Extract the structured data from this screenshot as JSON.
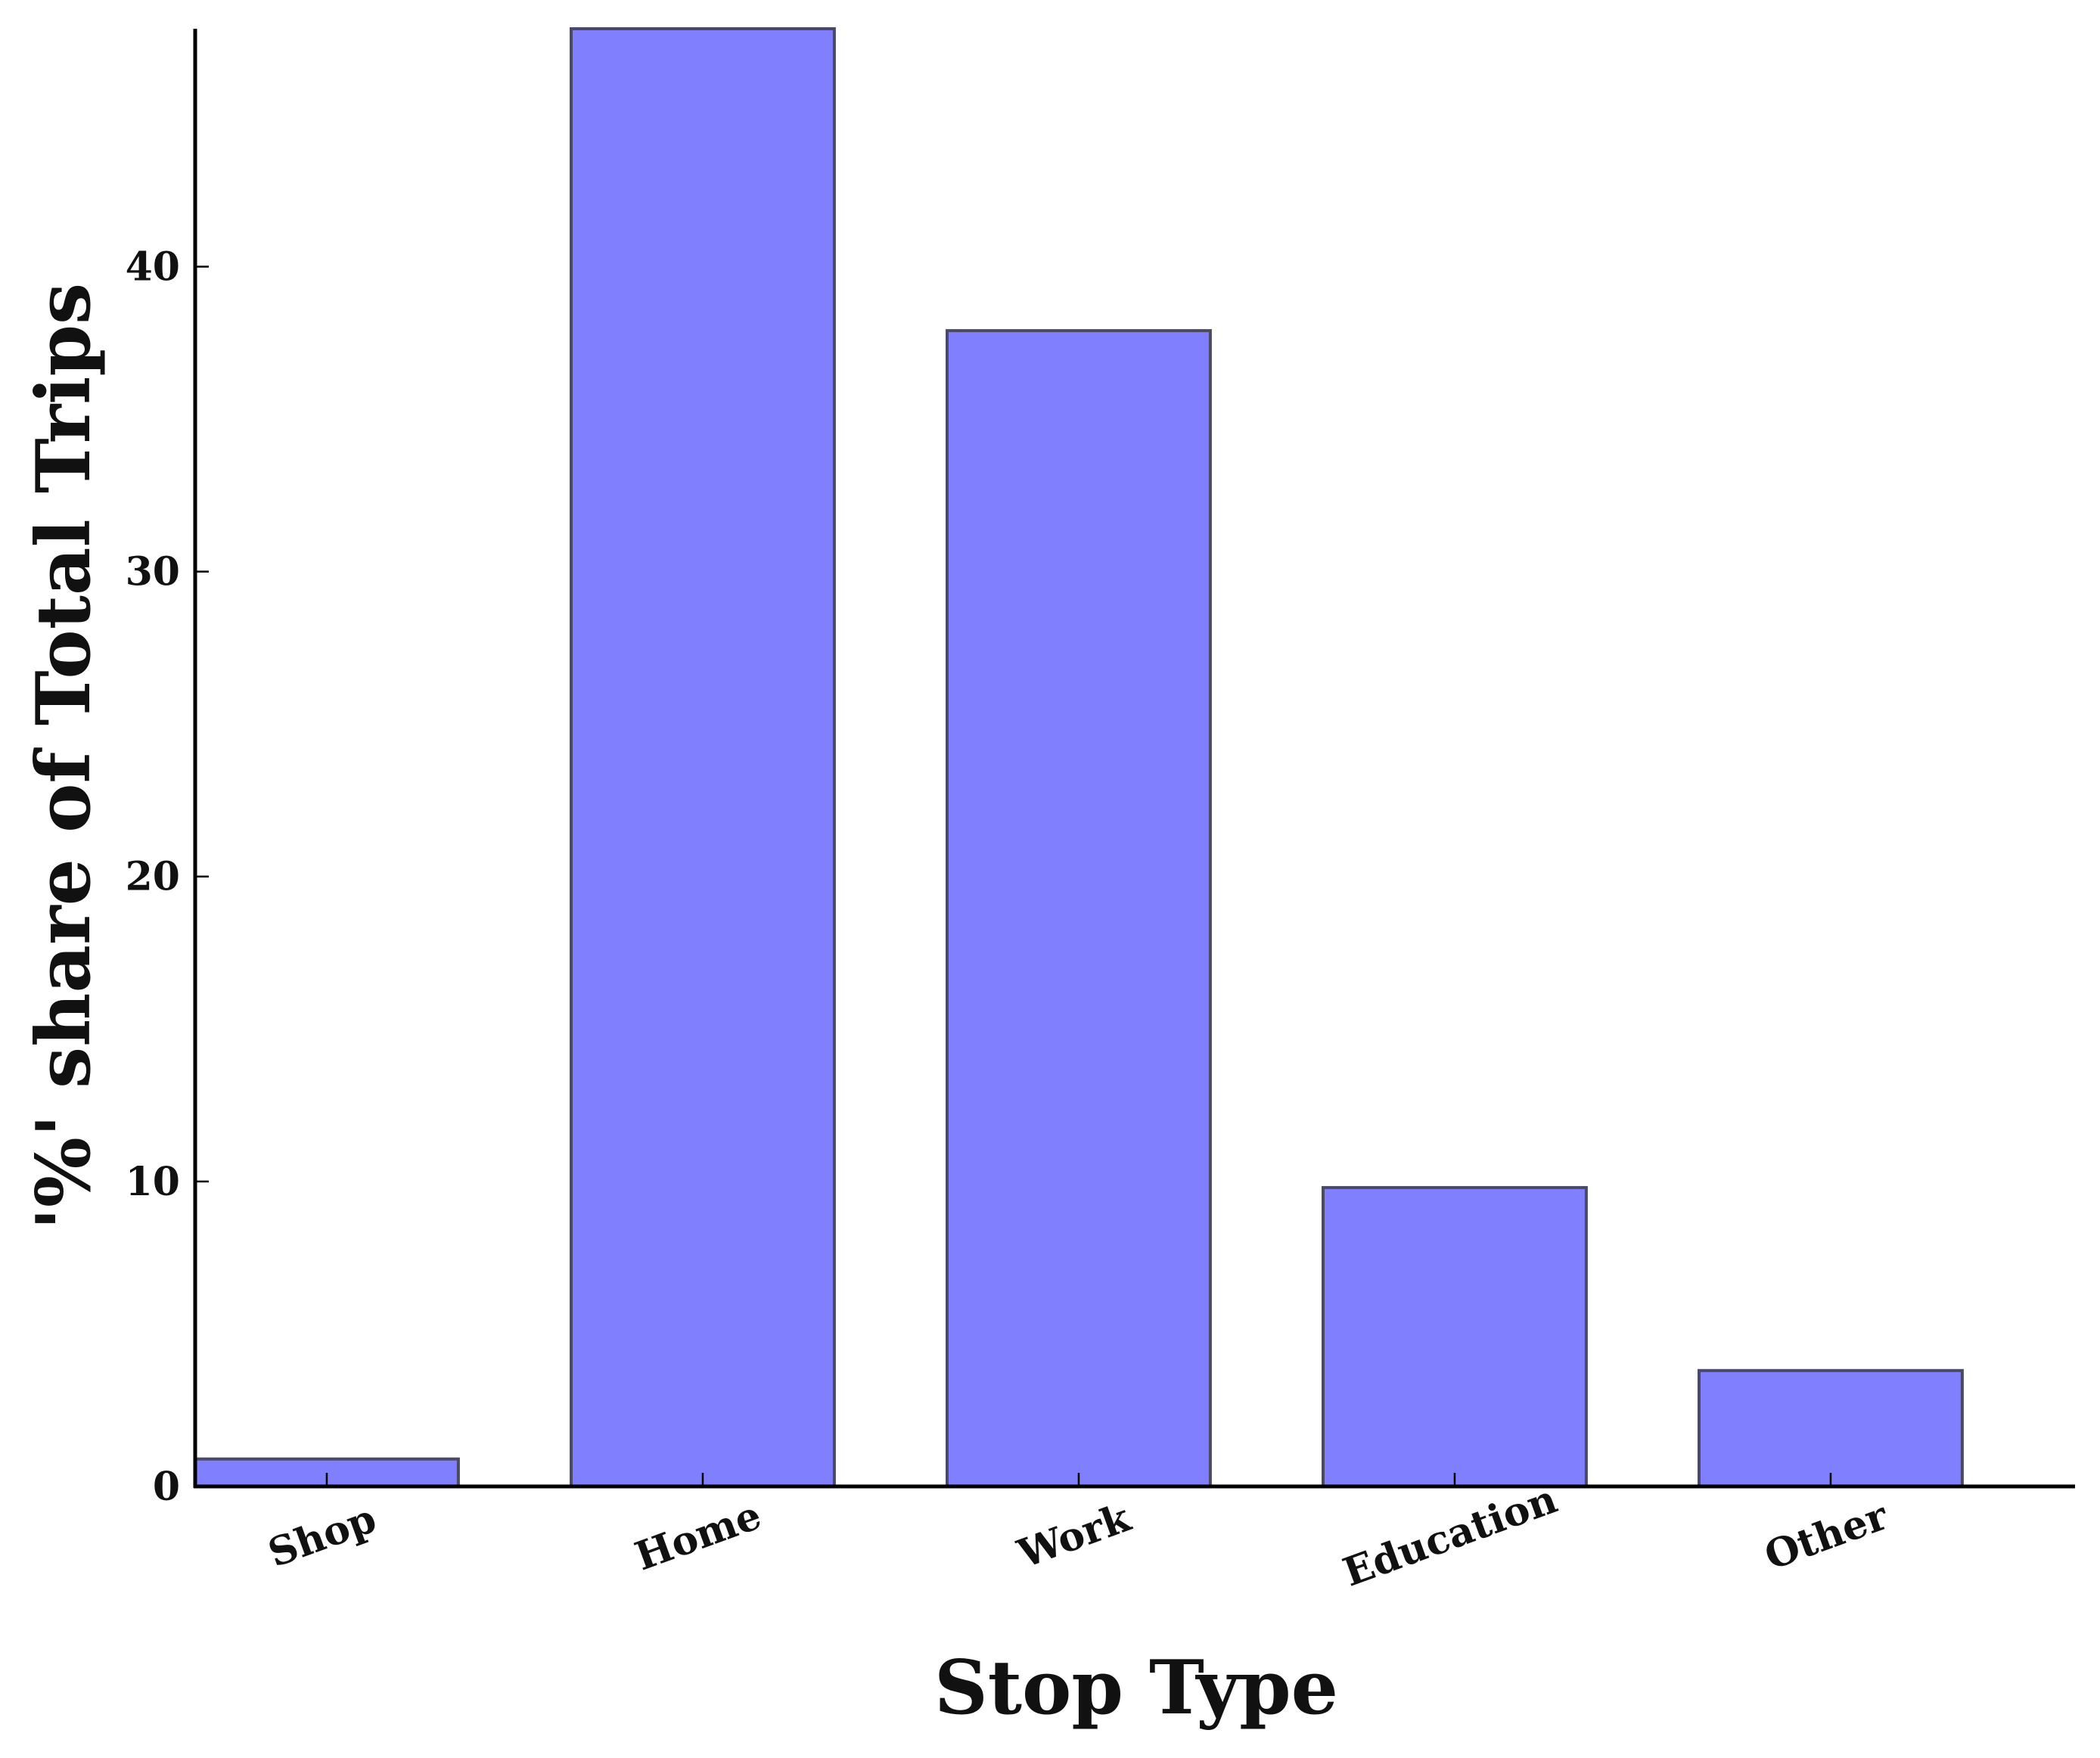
{
  "chart_data": {
    "type": "bar",
    "title": "",
    "xlabel": "Stop Type",
    "ylabel": "'%' share of Total Trips",
    "categories": [
      "Shop",
      "Home",
      "Work",
      "Education",
      "Other"
    ],
    "values": [
      0.9,
      47.8,
      37.9,
      9.8,
      3.8
    ],
    "ylim": [
      0,
      47.8
    ],
    "yticks": [
      "0",
      "10",
      "20",
      "30",
      "40"
    ],
    "bar_color": "#8080ff",
    "grid": false,
    "legend": "none"
  }
}
